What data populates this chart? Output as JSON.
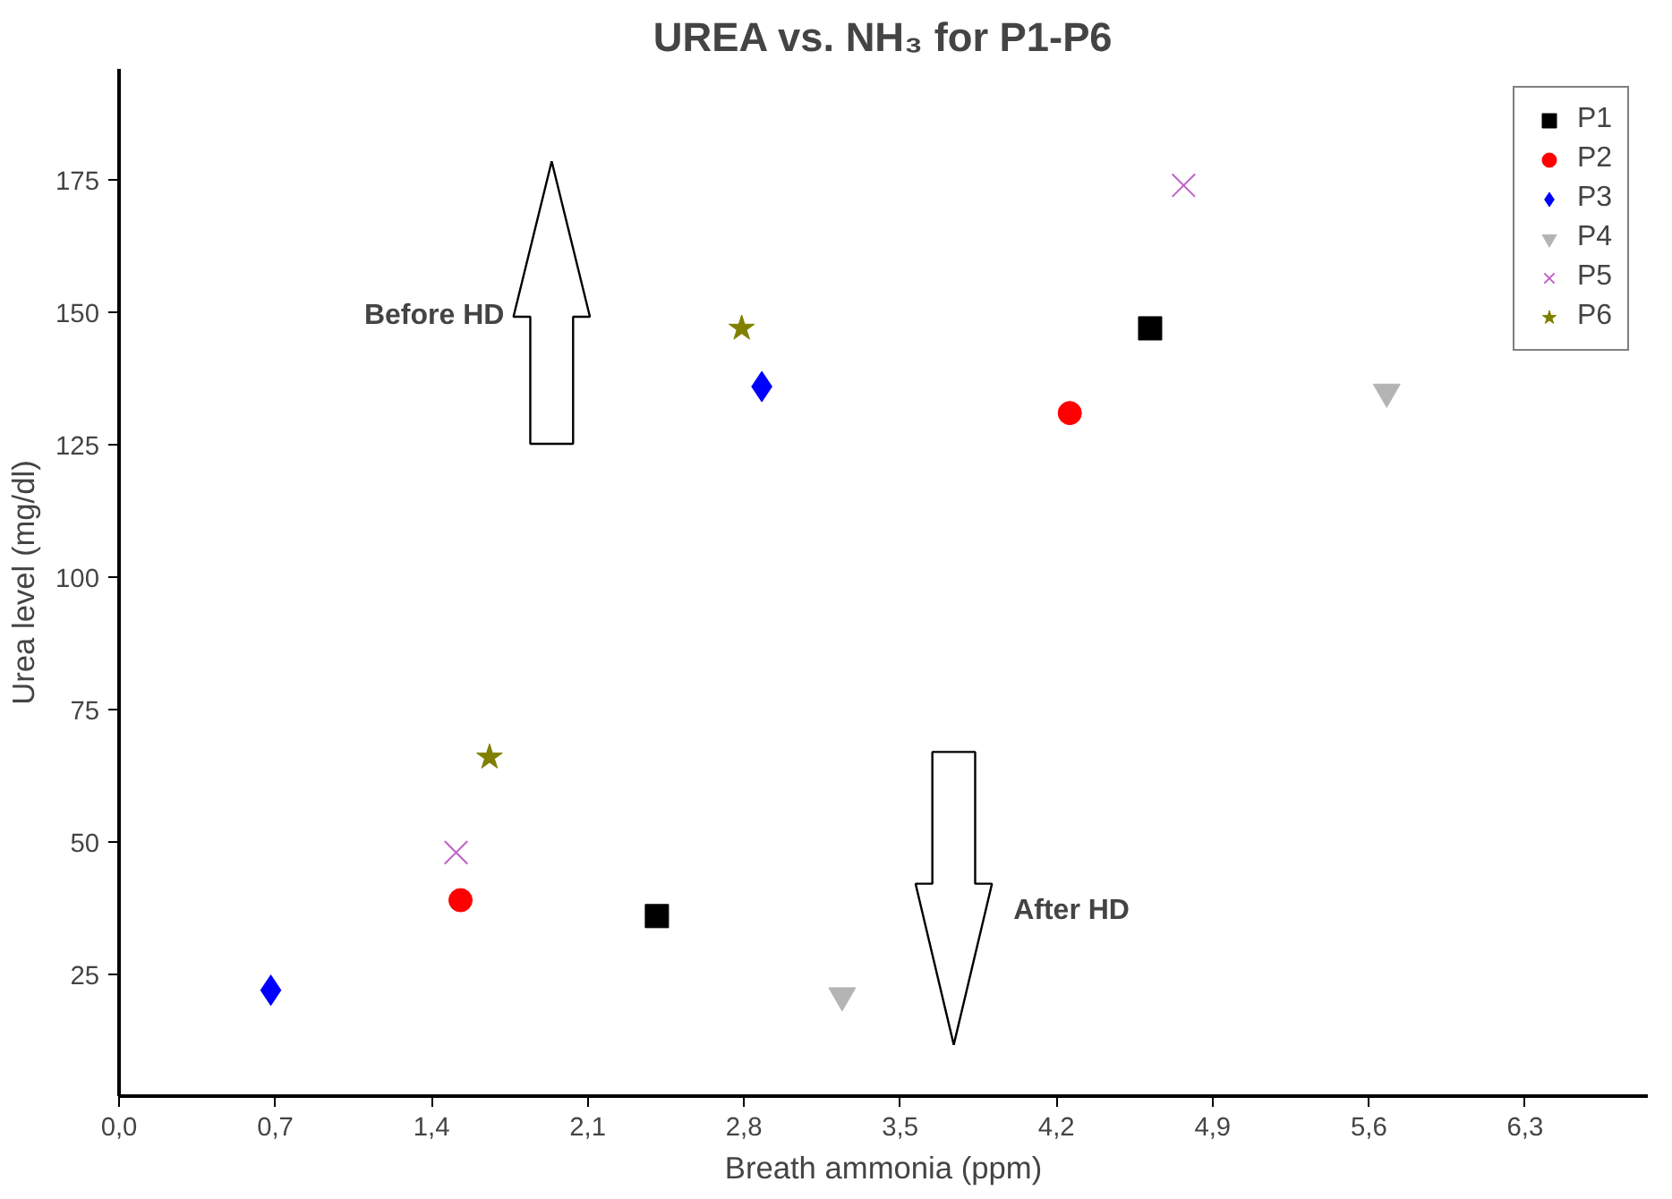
{
  "chart_data": {
    "type": "scatter",
    "title": "UREA vs. NH₃ for P1-P6",
    "xlabel": "Breath ammonia (ppm)",
    "ylabel": "Urea level (mg/dl)",
    "xlim": [
      0,
      6.85
    ],
    "ylim": [
      2,
      196
    ],
    "xticks": [
      {
        "value": 0,
        "label": "0,0"
      },
      {
        "value": 0.7,
        "label": "0,7"
      },
      {
        "value": 1.4,
        "label": "1,4"
      },
      {
        "value": 2.1,
        "label": "2,1"
      },
      {
        "value": 2.8,
        "label": "2,8"
      },
      {
        "value": 3.5,
        "label": "3,5"
      },
      {
        "value": 4.2,
        "label": "4,2"
      },
      {
        "value": 4.9,
        "label": "4,9"
      },
      {
        "value": 5.6,
        "label": "5,6"
      },
      {
        "value": 6.3,
        "label": "6,3"
      }
    ],
    "yticks": [
      25,
      50,
      75,
      100,
      125,
      150,
      175
    ],
    "grid": false,
    "legend": "top right",
    "series": [
      {
        "name": "P1",
        "color": "#000000",
        "marker": "square",
        "x": [
          2.41,
          4.62
        ],
        "values": [
          36,
          147
        ]
      },
      {
        "name": "P2",
        "color": "#ff0000",
        "marker": "circle",
        "x": [
          1.53,
          4.26
        ],
        "values": [
          39,
          131
        ]
      },
      {
        "name": "P3",
        "color": "#0000ff",
        "marker": "diamond",
        "x": [
          0.68,
          2.88
        ],
        "values": [
          22,
          136
        ]
      },
      {
        "name": "P4",
        "color": "#b4b4b4",
        "marker": "triangle",
        "x": [
          3.24,
          5.68
        ],
        "values": [
          21,
          135
        ]
      },
      {
        "name": "P5",
        "color": "#c060c8",
        "marker": "cross",
        "x": [
          1.51,
          4.77
        ],
        "values": [
          48,
          174
        ]
      },
      {
        "name": "P6",
        "color": "#808000",
        "marker": "star",
        "x": [
          1.66,
          2.79
        ],
        "values": [
          66,
          147
        ]
      }
    ],
    "annotations": [
      "Before HD",
      "After HD"
    ]
  }
}
